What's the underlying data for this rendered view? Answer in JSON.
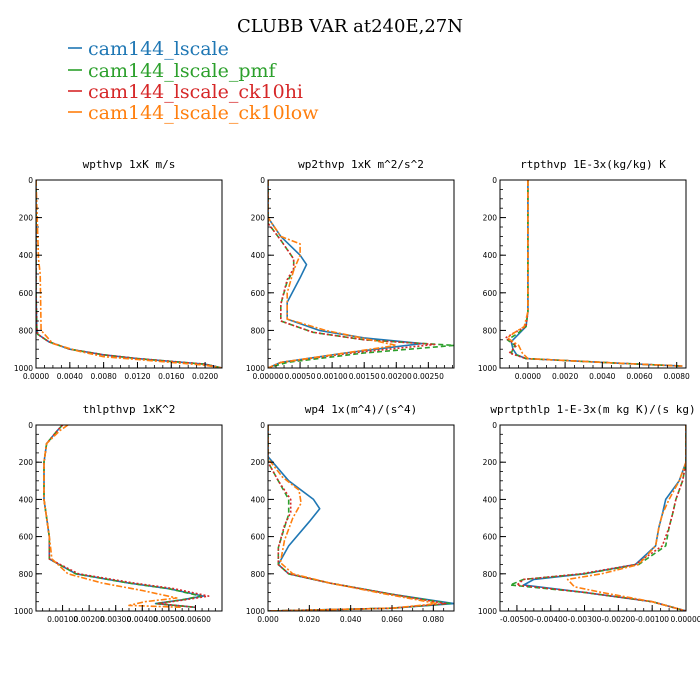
{
  "title": "CLUBB VAR at240E,27N",
  "legend": [
    {
      "name": "cam144_lscale",
      "color": "#1f77b4"
    },
    {
      "name": "cam144_lscale_pmf",
      "color": "#2ca02c"
    },
    {
      "name": "cam144_lscale_ck10hi",
      "color": "#d62728"
    },
    {
      "name": "cam144_lscale_ck10low",
      "color": "#ff7f0e"
    }
  ],
  "chart_data": [
    {
      "type": "line",
      "title": "wpthvp   1xK m/s",
      "xlim": [
        0,
        0.022
      ],
      "ylim": [
        0,
        1000
      ],
      "xticks": [
        0,
        0.004,
        0.008,
        0.012,
        0.016,
        0.02
      ],
      "xtick_labels": [
        "0.0000",
        "0.0040",
        "0.0080",
        "0.0120",
        "0.0160",
        "0.0200"
      ],
      "yticks": [
        0,
        200,
        400,
        600,
        800,
        1000
      ],
      "ytick_labels": [
        "0",
        "200",
        "400",
        "600",
        "800",
        "1000"
      ],
      "series": [
        {
          "name": "cam144_lscale",
          "x": [
            0,
            0,
            0.0001,
            0.0002,
            0.0015,
            0.004,
            0.008,
            0.012,
            0.016,
            0.02,
            0.022
          ],
          "y": [
            0,
            600,
            790,
            820,
            860,
            900,
            930,
            950,
            965,
            980,
            1000
          ]
        },
        {
          "name": "cam144_lscale_pmf",
          "x": [
            0,
            0,
            0.0001,
            0.0002,
            0.0015,
            0.004,
            0.008,
            0.012,
            0.016,
            0.02,
            0.022
          ],
          "y": [
            0,
            600,
            790,
            820,
            860,
            900,
            930,
            950,
            965,
            980,
            1000
          ]
        },
        {
          "name": "cam144_lscale_ck10hi",
          "x": [
            0,
            0,
            0.0001,
            0.0002,
            0.0015,
            0.004,
            0.008,
            0.012,
            0.016,
            0.02,
            0.022
          ],
          "y": [
            0,
            600,
            790,
            820,
            860,
            900,
            930,
            950,
            965,
            980,
            1000
          ]
        },
        {
          "name": "cam144_lscale_ck10low",
          "x": [
            0,
            0.0003,
            0.0005,
            0.0006,
            0.002,
            0.005,
            0.008,
            0.012,
            0.016,
            0.02,
            0.022
          ],
          "y": [
            0,
            420,
            500,
            800,
            870,
            910,
            940,
            955,
            970,
            985,
            1000
          ]
        }
      ]
    },
    {
      "type": "line",
      "title": "wp2thvp   1xK m^2/s^2",
      "xlim": [
        0,
        0.0029
      ],
      "ylim": [
        0,
        1000
      ],
      "xticks": [
        0,
        0.0005,
        0.001,
        0.0015,
        0.002,
        0.0025
      ],
      "xtick_labels": [
        "0.00000",
        "0.00050",
        "0.00100",
        "0.00150",
        "0.00200",
        "0.00250"
      ],
      "yticks": [
        0,
        200,
        400,
        600,
        800,
        1000
      ],
      "ytick_labels": [
        "0",
        "200",
        "400",
        "600",
        "800",
        "1000"
      ],
      "series": [
        {
          "name": "cam144_lscale",
          "x": [
            0,
            0,
            0.0002,
            0.0005,
            0.0006,
            0.0005,
            0.0003,
            0.0003,
            0.0008,
            0.0015,
            0.0024,
            0.0012,
            0.0002,
            0
          ],
          "y": [
            0,
            200,
            300,
            400,
            450,
            520,
            650,
            740,
            800,
            840,
            870,
            920,
            970,
            1000
          ]
        },
        {
          "name": "cam144_lscale_pmf",
          "x": [
            0,
            0,
            0.0002,
            0.0004,
            0.0004,
            0.0003,
            0.0002,
            0.0002,
            0.0007,
            0.0015,
            0.0029,
            0.0015,
            0.0003,
            0
          ],
          "y": [
            0,
            230,
            320,
            420,
            480,
            540,
            660,
            750,
            810,
            850,
            880,
            920,
            970,
            1000
          ]
        },
        {
          "name": "cam144_lscale_ck10hi",
          "x": [
            0,
            0,
            0.0002,
            0.0004,
            0.0004,
            0.0003,
            0.0002,
            0.0002,
            0.0007,
            0.0015,
            0.0026,
            0.0013,
            0.0002,
            0
          ],
          "y": [
            0,
            230,
            320,
            420,
            470,
            530,
            660,
            750,
            810,
            850,
            875,
            920,
            970,
            1000
          ]
        },
        {
          "name": "cam144_lscale_ck10low",
          "x": [
            0,
            0,
            0.0002,
            0.0005,
            0.0005,
            0.0004,
            0.0003,
            0.0003,
            0.0009,
            0.0016,
            0.002,
            0.0012,
            0.0002,
            0
          ],
          "y": [
            0,
            200,
            300,
            340,
            400,
            480,
            600,
            740,
            800,
            850,
            880,
            920,
            970,
            1000
          ]
        }
      ]
    },
    {
      "type": "line",
      "title": "rtpthvp   1E-3x(kg/kg) K",
      "xlim": [
        -0.0015,
        0.0085
      ],
      "ylim": [
        0,
        1000
      ],
      "xticks": [
        0,
        0.002,
        0.004,
        0.006,
        0.008
      ],
      "xtick_labels": [
        "0.0000",
        "0.0020",
        "0.0040",
        "0.0060",
        "0.0080"
      ],
      "yticks": [
        0,
        200,
        400,
        600,
        800,
        1000
      ],
      "ytick_labels": [
        "0",
        "200",
        "400",
        "600",
        "800",
        "1000"
      ],
      "series": [
        {
          "name": "cam144_lscale",
          "x": [
            0,
            0,
            -0.0001,
            -0.0005,
            -0.0009,
            -0.0008,
            -0.0006,
            -0.0001,
            0.002,
            0.005,
            0.0083
          ],
          "y": [
            0,
            700,
            780,
            820,
            860,
            900,
            930,
            950,
            960,
            975,
            990
          ]
        },
        {
          "name": "cam144_lscale_pmf",
          "x": [
            0,
            0,
            -0.0001,
            -0.0006,
            -0.0011,
            -0.0007,
            -0.0009,
            -0.0001,
            0.002,
            0.005,
            0.0083
          ],
          "y": [
            0,
            700,
            780,
            820,
            850,
            880,
            920,
            950,
            960,
            975,
            990
          ]
        },
        {
          "name": "cam144_lscale_ck10hi",
          "x": [
            0,
            0,
            -0.0001,
            -0.0007,
            -0.0012,
            -0.0006,
            -0.001,
            -0.0001,
            0.002,
            0.005,
            0.0083
          ],
          "y": [
            0,
            700,
            780,
            810,
            840,
            880,
            920,
            950,
            960,
            975,
            990
          ]
        },
        {
          "name": "cam144_lscale_ck10low",
          "x": [
            0,
            0,
            -0.0002,
            -0.0007,
            -0.0011,
            -0.0005,
            -0.0003,
            0,
            0.002,
            0.005,
            0.0083
          ],
          "y": [
            0,
            700,
            780,
            810,
            840,
            880,
            920,
            950,
            960,
            975,
            990
          ]
        }
      ]
    },
    {
      "type": "line",
      "title": "thlpthvp   1xK^2",
      "xlim": [
        0,
        0.007
      ],
      "ylim": [
        0,
        1000
      ],
      "xticks": [
        0.001,
        0.002,
        0.003,
        0.004,
        0.005,
        0.006
      ],
      "xtick_labels": [
        "0.00100",
        "0.00200",
        "0.00300",
        "0.00400",
        "0.00500",
        "0.00600"
      ],
      "yticks": [
        0,
        200,
        400,
        600,
        800,
        1000
      ],
      "ytick_labels": [
        "0",
        "200",
        "400",
        "600",
        "800",
        "1000"
      ],
      "series": [
        {
          "name": "cam144_lscale",
          "x": [
            0.001,
            0.0008,
            0.0004,
            0.0003,
            0.0003,
            0.0005,
            0.0005,
            0.0015,
            0.0035,
            0.005,
            0.0063,
            0.0055,
            0.0045,
            0.006
          ],
          "y": [
            0,
            30,
            100,
            200,
            400,
            600,
            720,
            800,
            850,
            880,
            920,
            940,
            960,
            980
          ]
        },
        {
          "name": "cam144_lscale_pmf",
          "x": [
            0.001,
            0.0008,
            0.0004,
            0.0003,
            0.0003,
            0.0005,
            0.0005,
            0.0015,
            0.0035,
            0.005,
            0.0062,
            0.0055,
            0.0045,
            0.006
          ],
          "y": [
            0,
            30,
            100,
            200,
            400,
            600,
            720,
            800,
            850,
            880,
            920,
            940,
            960,
            980
          ]
        },
        {
          "name": "cam144_lscale_ck10hi",
          "x": [
            0.001,
            0.0008,
            0.0004,
            0.0003,
            0.0003,
            0.0005,
            0.0005,
            0.0016,
            0.0037,
            0.0052,
            0.0065,
            0.0056,
            0.0046,
            0.006
          ],
          "y": [
            0,
            30,
            100,
            200,
            400,
            600,
            720,
            800,
            850,
            880,
            920,
            940,
            960,
            980
          ]
        },
        {
          "name": "cam144_lscale_ck10low",
          "x": [
            0.0012,
            0.0009,
            0.0004,
            0.0003,
            0.0003,
            0.0005,
            0.0006,
            0.0012,
            0.0025,
            0.004,
            0.0053,
            0.0041,
            0.0035,
            0.0055
          ],
          "y": [
            0,
            30,
            100,
            200,
            400,
            600,
            720,
            800,
            850,
            890,
            930,
            950,
            970,
            980
          ]
        }
      ]
    },
    {
      "type": "line",
      "title": "wp4   1x(m^4)/(s^4)",
      "xlim": [
        0,
        0.09
      ],
      "ylim": [
        0,
        1000
      ],
      "xticks": [
        0,
        0.02,
        0.04,
        0.06,
        0.08
      ],
      "xtick_labels": [
        "0.000",
        "0.020",
        "0.040",
        "0.060",
        "0.080"
      ],
      "yticks": [
        0,
        200,
        400,
        600,
        800,
        1000
      ],
      "ytick_labels": [
        "0",
        "200",
        "400",
        "600",
        "800",
        "1000"
      ],
      "series": [
        {
          "name": "cam144_lscale",
          "x": [
            0,
            0,
            0.01,
            0.022,
            0.025,
            0.02,
            0.01,
            0.005,
            0.01,
            0.03,
            0.06,
            0.09,
            0.06,
            0.02,
            0
          ],
          "y": [
            0,
            170,
            300,
            400,
            450,
            520,
            650,
            750,
            800,
            850,
            910,
            960,
            985,
            995,
            1000
          ]
        },
        {
          "name": "cam144_lscale_pmf",
          "x": [
            0,
            0,
            0.005,
            0.01,
            0.01,
            0.008,
            0.005,
            0.005,
            0.01,
            0.03,
            0.06,
            0.088,
            0.06,
            0.02,
            0
          ],
          "y": [
            0,
            200,
            300,
            400,
            480,
            550,
            660,
            750,
            800,
            850,
            910,
            960,
            985,
            995,
            1000
          ]
        },
        {
          "name": "cam144_lscale_ck10hi",
          "x": [
            0,
            0,
            0.005,
            0.011,
            0.011,
            0.008,
            0.005,
            0.005,
            0.01,
            0.03,
            0.06,
            0.086,
            0.06,
            0.02,
            0
          ],
          "y": [
            0,
            200,
            300,
            400,
            470,
            540,
            660,
            750,
            800,
            850,
            910,
            960,
            985,
            995,
            1000
          ]
        },
        {
          "name": "cam144_lscale_ck10low",
          "x": [
            0,
            0,
            0.007,
            0.015,
            0.016,
            0.012,
            0.008,
            0.006,
            0.012,
            0.03,
            0.055,
            0.082,
            0.06,
            0.02,
            0
          ],
          "y": [
            0,
            180,
            280,
            350,
            420,
            500,
            620,
            740,
            800,
            850,
            905,
            960,
            985,
            995,
            1000
          ]
        }
      ]
    },
    {
      "type": "line",
      "title": "wprtpthlp   1-E-3x(m kg K)/(s kg)",
      "xlim": [
        -0.0055,
        0
      ],
      "ylim": [
        0,
        1000
      ],
      "xticks": [
        -0.005,
        -0.004,
        -0.003,
        -0.002,
        -0.001,
        0
      ],
      "xtick_labels": [
        "-0.00500",
        "-0.00400",
        "-0.00300",
        "-0.00200",
        "-0.00100",
        "0.00000"
      ],
      "yticks": [
        0,
        200,
        400,
        600,
        800,
        1000
      ],
      "ytick_labels": [
        "0",
        "200",
        "400",
        "600",
        "800",
        "1000"
      ],
      "series": [
        {
          "name": "cam144_lscale",
          "x": [
            0,
            0,
            -0.0002,
            -0.0006,
            -0.0007,
            -0.0008,
            -0.0009,
            -0.0015,
            -0.003,
            -0.0045,
            -0.0048,
            -0.003,
            -0.001,
            0
          ],
          "y": [
            0,
            200,
            300,
            400,
            480,
            550,
            650,
            750,
            800,
            830,
            860,
            900,
            950,
            1000
          ]
        },
        {
          "name": "cam144_lscale_pmf",
          "x": [
            0,
            0,
            -0.0001,
            -0.0003,
            -0.0004,
            -0.0005,
            -0.0006,
            -0.0014,
            -0.003,
            -0.0048,
            -0.0052,
            -0.003,
            -0.001,
            0
          ],
          "y": [
            0,
            200,
            300,
            400,
            480,
            550,
            650,
            750,
            800,
            830,
            860,
            900,
            950,
            1000
          ]
        },
        {
          "name": "cam144_lscale_ck10hi",
          "x": [
            0,
            0,
            -0.0001,
            -0.0003,
            -0.0004,
            -0.0005,
            -0.0007,
            -0.0015,
            -0.0031,
            -0.0048,
            -0.005,
            -0.003,
            -0.001,
            0
          ],
          "y": [
            0,
            200,
            300,
            400,
            480,
            550,
            650,
            750,
            800,
            830,
            860,
            900,
            950,
            1000
          ]
        },
        {
          "name": "cam144_lscale_ck10low",
          "x": [
            0,
            0,
            -0.0002,
            -0.0005,
            -0.0007,
            -0.0008,
            -0.0009,
            -0.0014,
            -0.0025,
            -0.0035,
            -0.0033,
            -0.0025,
            -0.001,
            0
          ],
          "y": [
            0,
            200,
            300,
            400,
            480,
            550,
            650,
            750,
            800,
            830,
            870,
            900,
            950,
            1000
          ]
        }
      ]
    }
  ]
}
